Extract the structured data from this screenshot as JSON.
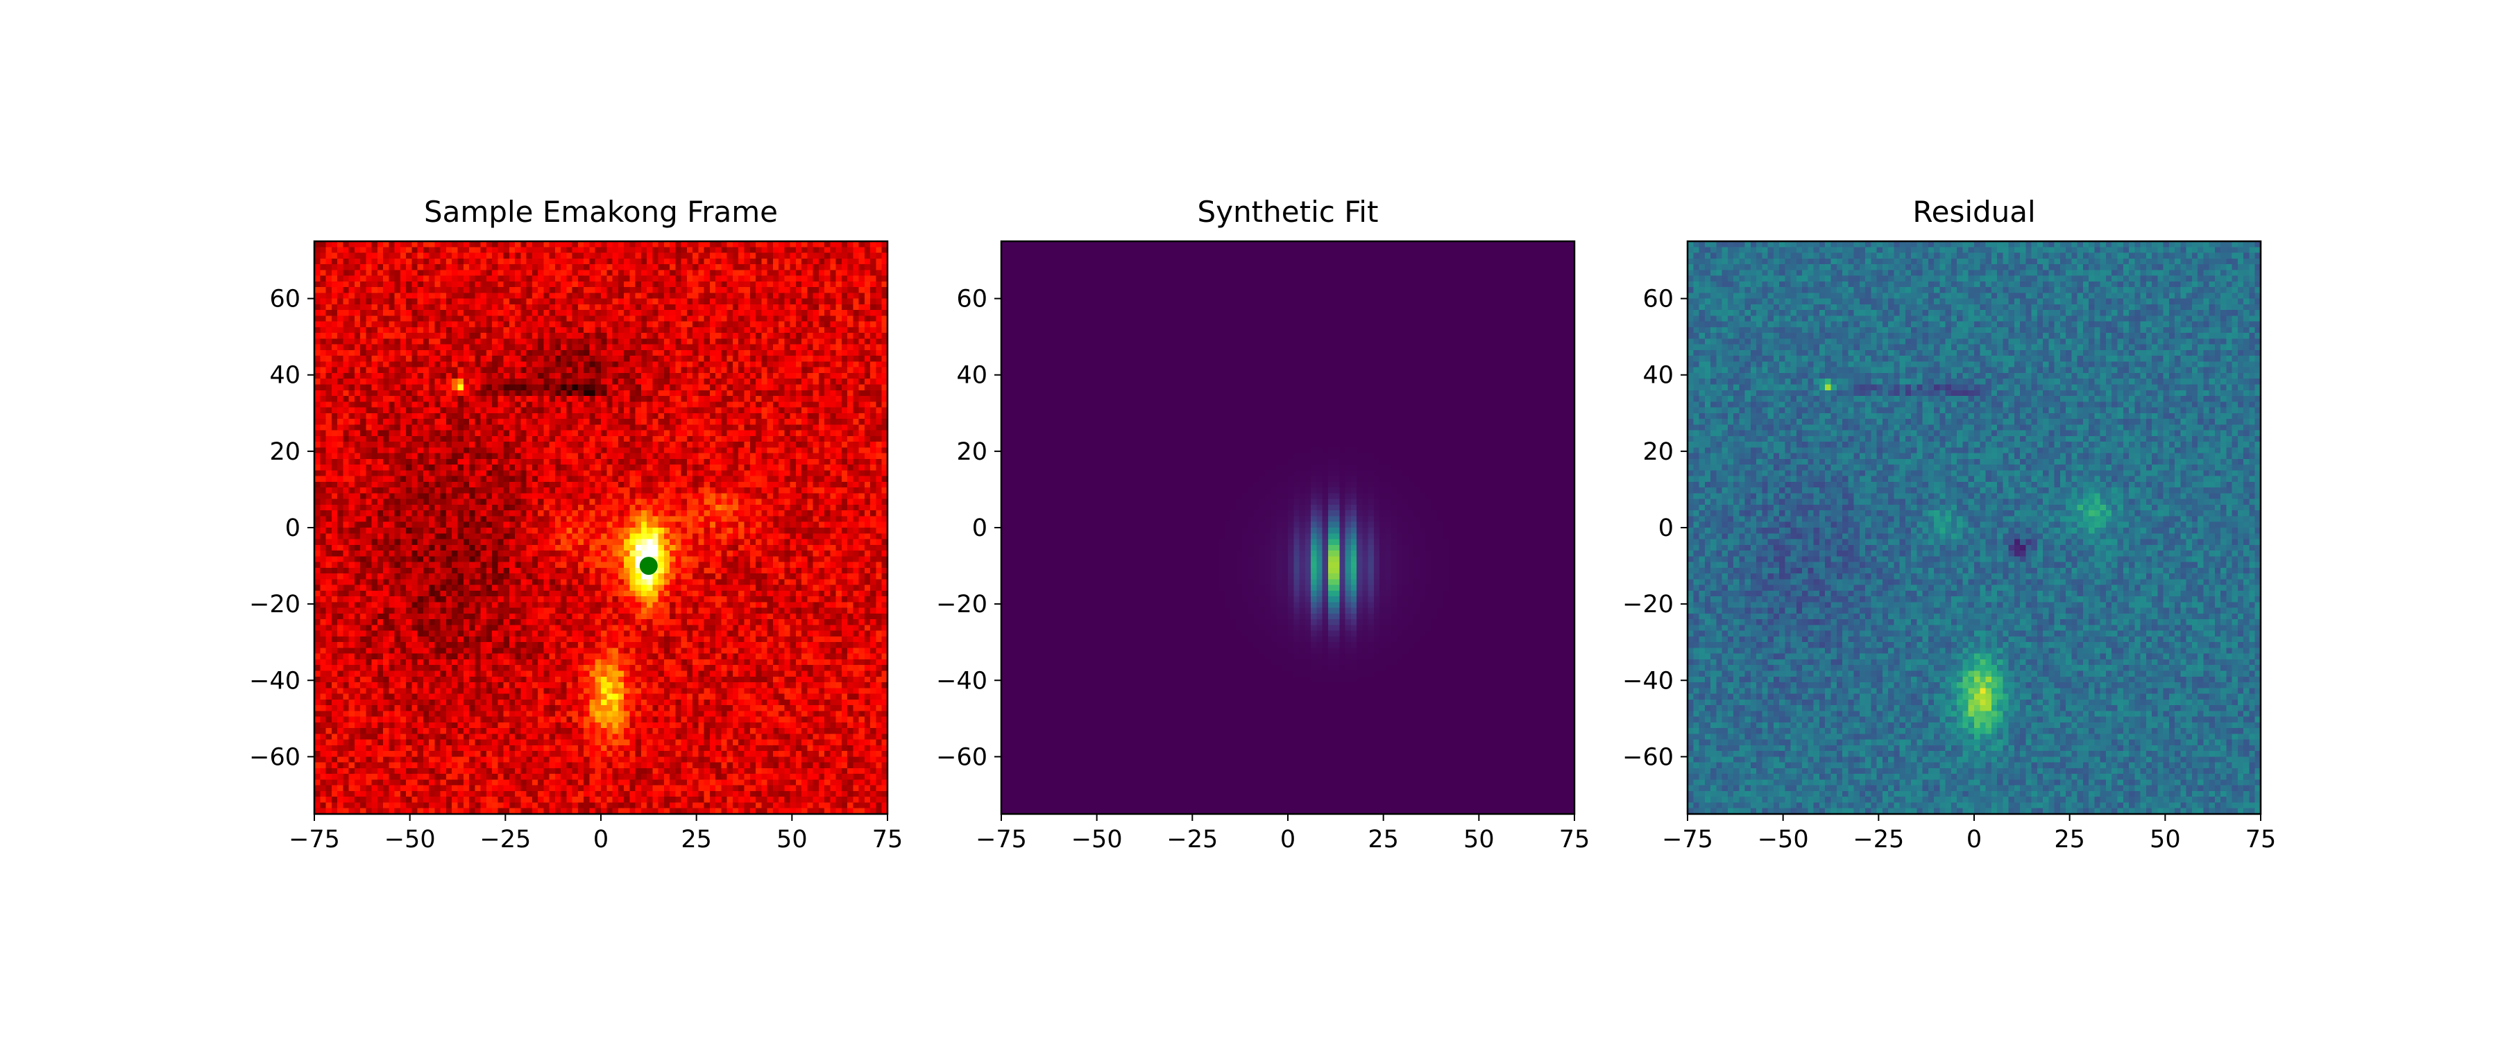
{
  "chart_data": [
    {
      "type": "heatmap",
      "title": "Sample Emakong Frame",
      "colormap": "hot",
      "xlim": [
        -75,
        75
      ],
      "ylim": [
        -75,
        75
      ],
      "xticks": [
        -75,
        -50,
        -25,
        0,
        25,
        50,
        75
      ],
      "yticks": [
        -60,
        -40,
        -20,
        0,
        20,
        40,
        60
      ],
      "xtick_labels": [
        "−75",
        "−50",
        "−25",
        "0",
        "25",
        "50",
        "75"
      ],
      "ytick_labels": [
        "−60",
        "−40",
        "−20",
        "0",
        "20",
        "40",
        "60"
      ],
      "background_level": 0.32,
      "features": [
        {
          "kind": "gaussian",
          "x": 12,
          "y": -9,
          "sx": 3,
          "sy": 7,
          "amp": 0.65
        },
        {
          "kind": "gaussian",
          "x": 12,
          "y": -6,
          "sx": 8,
          "sy": 6,
          "amp": 0.2
        },
        {
          "kind": "gaussian",
          "x": -8,
          "y": -1,
          "sx": 6,
          "sy": 5,
          "amp": 0.12
        },
        {
          "kind": "gaussian",
          "x": 32,
          "y": 4,
          "sx": 6,
          "sy": 4,
          "amp": 0.14
        },
        {
          "kind": "gaussian",
          "x": 2,
          "y": -44,
          "sx": 4,
          "sy": 8,
          "amp": 0.35
        },
        {
          "kind": "gaussian",
          "x": -40,
          "y": -5,
          "sx": 18,
          "sy": 25,
          "amp": -0.1
        },
        {
          "kind": "gaussian",
          "x": -5,
          "y": 42,
          "sx": 12,
          "sy": 6,
          "amp": -0.1
        },
        {
          "kind": "gaussian",
          "x": -37,
          "y": 37,
          "sx": 1,
          "sy": 1,
          "amp": 0.5
        },
        {
          "kind": "streak",
          "x0": -32,
          "x1": 2,
          "y": 36,
          "amp": -0.22
        }
      ],
      "markers": [
        {
          "x": 12.5,
          "y": -10,
          "color": "#008000",
          "shape": "circle"
        }
      ]
    },
    {
      "type": "heatmap",
      "title": "Synthetic Fit",
      "colormap": "viridis",
      "xlim": [
        -75,
        75
      ],
      "ylim": [
        -75,
        75
      ],
      "xticks": [
        -75,
        -50,
        -25,
        0,
        25,
        50,
        75
      ],
      "yticks": [
        -60,
        -40,
        -20,
        0,
        20,
        40,
        60
      ],
      "xtick_labels": [
        "−75",
        "−50",
        "−25",
        "0",
        "25",
        "50",
        "75"
      ],
      "ytick_labels": [
        "−60",
        "−40",
        "−20",
        "0",
        "20",
        "40",
        "60"
      ],
      "background_level": 0.0,
      "features": [
        {
          "kind": "fringe",
          "x": 12,
          "y": -10,
          "sx": 5,
          "sy": 8,
          "amp": 1.0,
          "period": 5
        },
        {
          "kind": "gaussian",
          "x": 12,
          "y": -10,
          "sx": 11,
          "sy": 11,
          "amp": 0.06
        }
      ],
      "markers": []
    },
    {
      "type": "heatmap",
      "title": "Residual",
      "colormap": "viridis",
      "xlim": [
        -75,
        75
      ],
      "ylim": [
        -75,
        75
      ],
      "xticks": [
        -75,
        -50,
        -25,
        0,
        25,
        50,
        75
      ],
      "yticks": [
        -60,
        -40,
        -20,
        0,
        20,
        40,
        60
      ],
      "xtick_labels": [
        "−75",
        "−50",
        "−25",
        "0",
        "25",
        "50",
        "75"
      ],
      "ytick_labels": [
        "−60",
        "−40",
        "−20",
        "0",
        "20",
        "40",
        "60"
      ],
      "background_level": 0.38,
      "features": [
        {
          "kind": "gaussian",
          "x": 2,
          "y": -44,
          "sx": 4,
          "sy": 7,
          "amp": 0.5
        },
        {
          "kind": "gaussian",
          "x": 31,
          "y": 4,
          "sx": 4,
          "sy": 4,
          "amp": 0.25
        },
        {
          "kind": "gaussian",
          "x": -8,
          "y": 1,
          "sx": 3,
          "sy": 3,
          "amp": 0.15
        },
        {
          "kind": "gaussian",
          "x": 12,
          "y": -5,
          "sx": 2,
          "sy": 2,
          "amp": -0.25
        },
        {
          "kind": "gaussian",
          "x": -45,
          "y": -10,
          "sx": 15,
          "sy": 20,
          "amp": -0.08
        },
        {
          "kind": "gaussian",
          "x": -38,
          "y": 37,
          "sx": 1,
          "sy": 1,
          "amp": 0.55
        },
        {
          "kind": "streak",
          "x0": -32,
          "x1": 2,
          "y": 36,
          "amp": -0.25
        }
      ],
      "markers": []
    }
  ]
}
